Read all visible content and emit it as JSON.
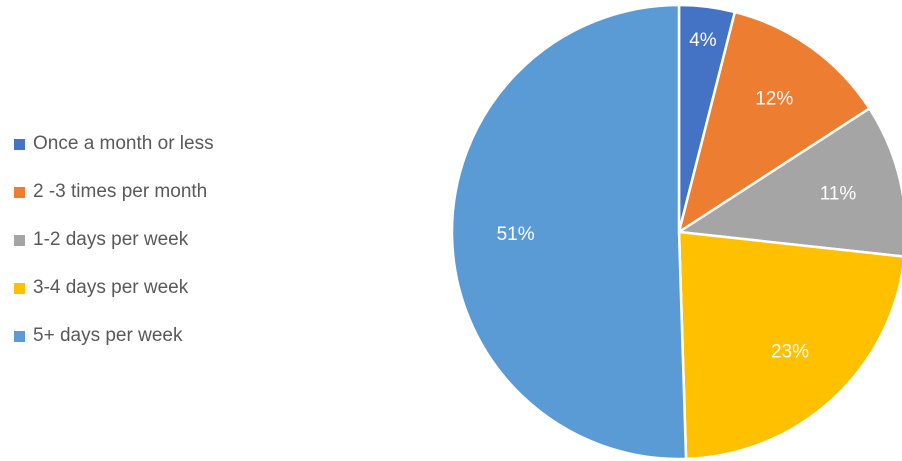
{
  "chart_data": {
    "type": "pie",
    "title": "",
    "legend_position": "left",
    "categories": [
      "Once a month or less",
      "2 -3 times per month",
      "1-2 days per week",
      "3-4 days per week",
      "5+ days per week"
    ],
    "values": [
      4,
      12,
      11,
      23,
      51
    ],
    "labels": [
      "4%",
      "12%",
      "11%",
      "23%",
      "51%"
    ],
    "colors": [
      "#4472C4",
      "#ED7D31",
      "#A5A5A5",
      "#FFC000",
      "#5B9BD5"
    ]
  }
}
